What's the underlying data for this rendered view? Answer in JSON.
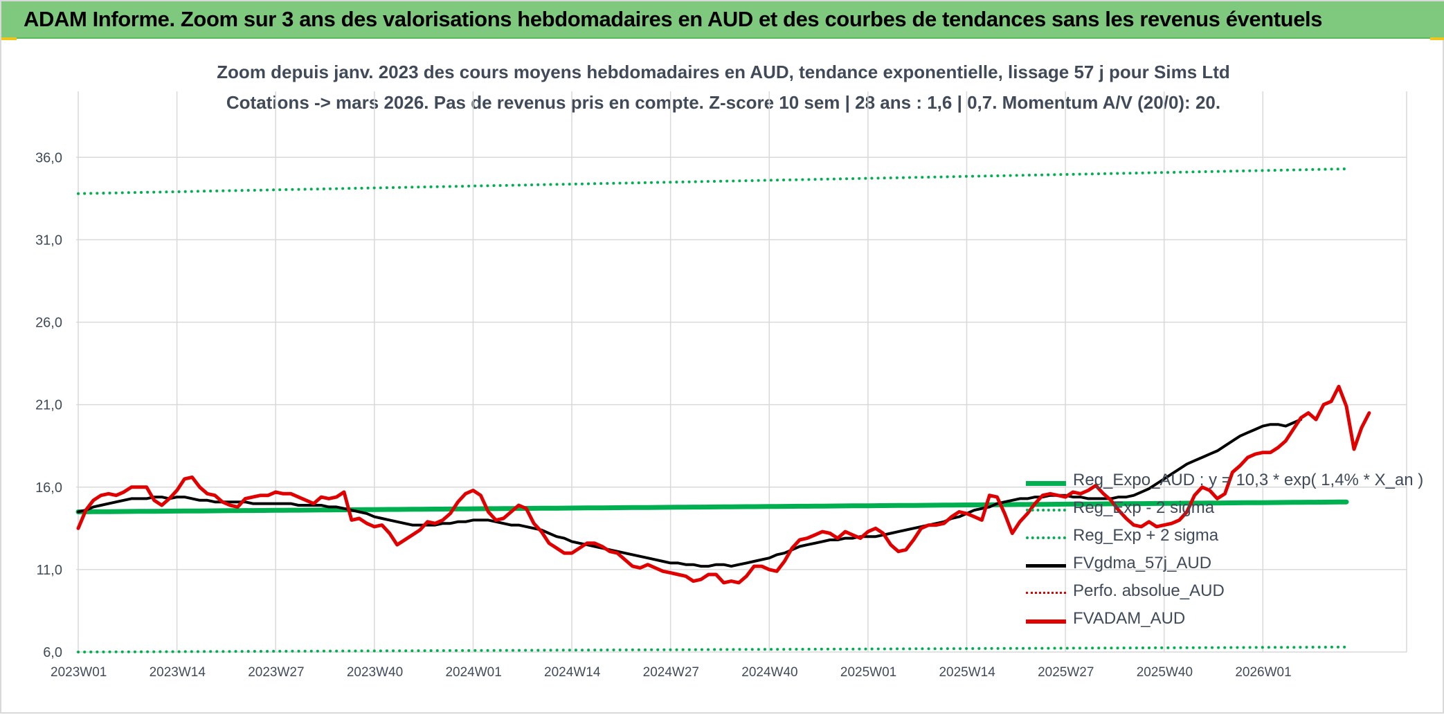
{
  "header": {
    "title": "ADAM Informe. Zoom sur 3 ans des valorisations hebdomadaires en AUD et des courbes de tendances sans les revenus éventuels"
  },
  "colors": {
    "header_bg": "#7fc97f",
    "reg_expo": "#00b050",
    "fvgdma": "#000000",
    "perfo": "#e00000",
    "fvadam": "#e00000",
    "grid": "#d9d9d9",
    "text": "#404a59"
  },
  "chart_data": {
    "type": "line",
    "title": "Zoom depuis janv. 2023 des cours moyens hebdomadaires en AUD, tendance exponentielle, lissage 57 j pour Sims Ltd",
    "subtitle": "Cotations -> mars 2026. Pas de revenus pris en compte. Z-score 10 sem | 28 ans : 1,6 | 0,7. Momentum A/V (20/0): 20.",
    "xlabel": "",
    "ylabel": "",
    "x_start": "2023W01",
    "x_end": "2026W12",
    "x_ticks": [
      "2023W01",
      "2023W14",
      "2023W27",
      "2023W40",
      "2024W01",
      "2024W14",
      "2024W27",
      "2024W40",
      "2025W01",
      "2025W14",
      "2025W27",
      "2025W40",
      "2026W01"
    ],
    "y_ticks": [
      "6,0",
      "11,0",
      "16,0",
      "21,0",
      "26,0",
      "31,0",
      "36,0"
    ],
    "ylim": [
      6,
      40
    ],
    "grid": true,
    "legend_position": "right",
    "series": [
      {
        "name": "Reg_Expo_AUD : y = 10,3 * exp( 1,4% *  X_an )",
        "style": "solid-thick",
        "color": "#00b050",
        "start": 14.5,
        "end": 15.1
      },
      {
        "name": "Reg_Exp - 2 sigma",
        "style": "dotted",
        "color": "#00b050",
        "start": 6.0,
        "end": 6.3
      },
      {
        "name": "Reg_Exp + 2 sigma",
        "style": "dotted",
        "color": "#00b050",
        "start": 33.8,
        "end": 35.3
      },
      {
        "name": "FVgdma_57j_AUD",
        "style": "solid",
        "color": "#000000",
        "values": [
          14.5,
          14.6,
          14.8,
          14.9,
          15.0,
          15.1,
          15.2,
          15.3,
          15.3,
          15.3,
          15.4,
          15.4,
          15.3,
          15.4,
          15.4,
          15.3,
          15.2,
          15.2,
          15.1,
          15.1,
          15.1,
          15.1,
          15.1,
          15.0,
          15.0,
          15.0,
          15.0,
          15.0,
          15.0,
          14.9,
          14.9,
          14.9,
          14.9,
          14.8,
          14.8,
          14.7,
          14.6,
          14.5,
          14.4,
          14.2,
          14.1,
          14.0,
          13.9,
          13.8,
          13.7,
          13.7,
          13.7,
          13.7,
          13.8,
          13.8,
          13.9,
          13.9,
          14.0,
          14.0,
          14.0,
          13.9,
          13.8,
          13.7,
          13.7,
          13.6,
          13.5,
          13.4,
          13.2,
          13.0,
          12.9,
          12.7,
          12.6,
          12.5,
          12.4,
          12.3,
          12.2,
          12.1,
          12.0,
          11.9,
          11.8,
          11.7,
          11.6,
          11.5,
          11.4,
          11.4,
          11.3,
          11.3,
          11.2,
          11.2,
          11.3,
          11.3,
          11.2,
          11.3,
          11.4,
          11.5,
          11.6,
          11.7,
          11.9,
          12.0,
          12.2,
          12.4,
          12.5,
          12.6,
          12.7,
          12.8,
          12.8,
          12.9,
          12.9,
          13.0,
          13.0,
          13.0,
          13.1,
          13.2,
          13.3,
          13.4,
          13.5,
          13.6,
          13.7,
          13.8,
          13.9,
          14.1,
          14.2,
          14.4,
          14.6,
          14.7,
          14.8,
          15.0,
          15.1,
          15.2,
          15.3,
          15.3,
          15.4,
          15.4,
          15.5,
          15.5,
          15.5,
          15.4,
          15.4,
          15.3,
          15.3,
          15.3,
          15.3,
          15.4,
          15.4,
          15.5,
          15.7,
          15.9,
          16.2,
          16.5,
          16.8,
          17.1,
          17.4,
          17.6,
          17.8,
          18.0,
          18.2,
          18.5,
          18.8,
          19.1,
          19.3,
          19.5,
          19.7,
          19.8,
          19.8,
          19.7,
          19.9,
          20.1
        ]
      },
      {
        "name": "Perfo. absolue_AUD",
        "style": "dotted",
        "color": "#e00000",
        "values": []
      },
      {
        "name": "FVADAM_AUD",
        "style": "solid-thick",
        "color": "#e00000",
        "values": [
          13.5,
          14.6,
          15.2,
          15.5,
          15.6,
          15.5,
          15.7,
          16.0,
          16.0,
          16.0,
          15.2,
          14.9,
          15.3,
          15.8,
          16.5,
          16.6,
          16.0,
          15.6,
          15.5,
          15.1,
          14.9,
          14.8,
          15.3,
          15.4,
          15.5,
          15.5,
          15.7,
          15.6,
          15.6,
          15.4,
          15.2,
          15.0,
          15.4,
          15.3,
          15.4,
          15.7,
          14.0,
          14.1,
          13.8,
          13.6,
          13.7,
          13.2,
          12.5,
          12.8,
          13.1,
          13.4,
          13.9,
          13.8,
          14.0,
          14.4,
          15.1,
          15.6,
          15.8,
          15.5,
          14.5,
          14.0,
          14.1,
          14.5,
          14.9,
          14.7,
          13.8,
          13.3,
          12.6,
          12.3,
          12.0,
          12.0,
          12.3,
          12.6,
          12.6,
          12.4,
          12.1,
          12.0,
          11.6,
          11.2,
          11.1,
          11.3,
          11.1,
          10.9,
          10.8,
          10.7,
          10.6,
          10.3,
          10.4,
          10.7,
          10.7,
          10.2,
          10.3,
          10.2,
          10.6,
          11.2,
          11.2,
          11.0,
          10.9,
          11.5,
          12.3,
          12.8,
          12.9,
          13.1,
          13.3,
          13.2,
          12.9,
          13.3,
          13.1,
          12.9,
          13.3,
          13.5,
          13.2,
          12.5,
          12.1,
          12.2,
          12.8,
          13.5,
          13.7,
          13.7,
          13.8,
          14.2,
          14.5,
          14.4,
          14.2,
          14.0,
          15.5,
          15.4,
          14.4,
          13.2,
          13.9,
          14.4,
          15.0,
          15.5,
          15.6,
          15.5,
          15.4,
          15.7,
          15.6,
          15.8,
          16.1,
          15.6,
          15.2,
          14.6,
          14.1,
          13.7,
          13.6,
          13.9,
          13.6,
          13.7,
          13.8,
          14.0,
          14.5,
          15.5,
          16.0,
          15.8,
          15.3,
          15.6,
          16.9,
          17.3,
          17.8,
          18.0,
          18.1,
          18.1,
          18.4,
          18.8,
          19.5,
          20.2,
          20.5,
          20.1,
          21.0,
          21.2,
          22.1,
          20.9,
          18.3,
          19.6,
          20.5
        ]
      }
    ]
  }
}
